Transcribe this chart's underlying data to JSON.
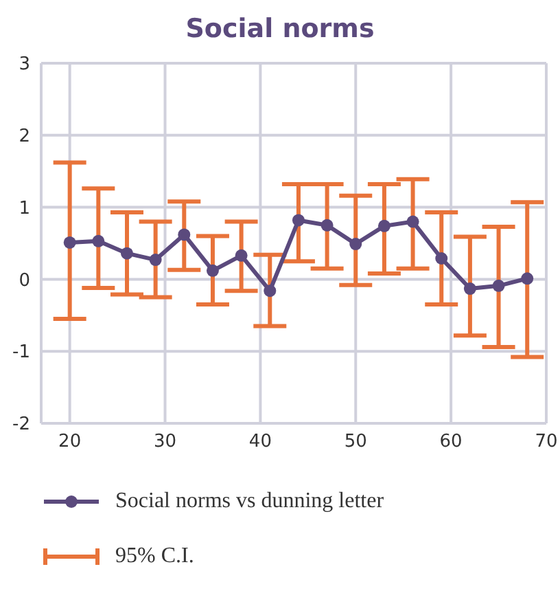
{
  "chart_data": {
    "type": "line",
    "title": "Social norms",
    "x": [
      20,
      23,
      26,
      29,
      32,
      35,
      38,
      41,
      44,
      47,
      50,
      53,
      56,
      59,
      62,
      65,
      68
    ],
    "series": [
      {
        "name": "Social norms vs dunning letter",
        "color": "#5b4a7d",
        "values": [
          0.51,
          0.53,
          0.36,
          0.27,
          0.62,
          0.12,
          0.33,
          -0.16,
          0.82,
          0.75,
          0.49,
          0.74,
          0.8,
          0.29,
          -0.13,
          -0.09,
          0.01
        ],
        "errors": [
          [
            -0.55,
            1.62
          ],
          [
            -0.12,
            1.26
          ],
          [
            -0.21,
            0.93
          ],
          [
            -0.25,
            0.8
          ],
          [
            0.13,
            1.08
          ],
          [
            -0.35,
            0.6
          ],
          [
            -0.16,
            0.8
          ],
          [
            -0.65,
            0.34
          ],
          [
            0.25,
            1.32
          ],
          [
            0.15,
            1.32
          ],
          [
            -0.08,
            1.16
          ],
          [
            0.08,
            1.32
          ],
          [
            0.15,
            1.39
          ],
          [
            -0.35,
            0.93
          ],
          [
            -0.78,
            0.59
          ],
          [
            -0.94,
            0.73
          ],
          [
            -1.08,
            1.07
          ]
        ]
      }
    ],
    "annotations": [
      "95% C.I."
    ],
    "xlim": [
      17,
      70
    ],
    "xticks": [
      20,
      30,
      40,
      50,
      60,
      70
    ],
    "ylim": [
      -2,
      3
    ],
    "yticks": [
      -2,
      -1,
      0,
      1,
      2,
      3
    ],
    "grid": true,
    "legend": "bottom",
    "marker": "circle",
    "line_style": "solid"
  }
}
